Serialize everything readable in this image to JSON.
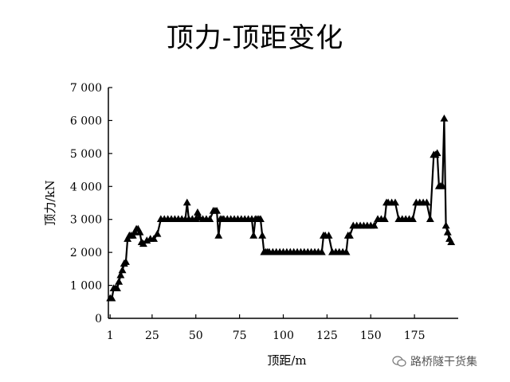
{
  "chart_data": {
    "type": "line",
    "title": "顶力-顶距变化",
    "xlabel": "顶距/m",
    "ylabel": "顶力/kN",
    "xlim": [
      0,
      200
    ],
    "ylim": [
      0,
      7000
    ],
    "x_ticks": [
      1,
      25,
      50,
      75,
      100,
      125,
      150,
      175
    ],
    "y_ticks": [
      0,
      1000,
      2000,
      3000,
      4000,
      5000,
      6000,
      7000
    ],
    "y_tick_labels": [
      "0",
      "1 000",
      "2 000",
      "3 000",
      "4 000",
      "5 000",
      "6 000",
      "7 000"
    ],
    "grid": false,
    "marker": "triangle",
    "series": [
      {
        "x": [
          1,
          2,
          3,
          4,
          5,
          6,
          7,
          8,
          9,
          10,
          11,
          12,
          13,
          14,
          15,
          16,
          17,
          18,
          19,
          20,
          22,
          24,
          26,
          28,
          30,
          32,
          34,
          36,
          38,
          40,
          42,
          44,
          45,
          46,
          48,
          50,
          51,
          52,
          54,
          56,
          58,
          60,
          61,
          62,
          63,
          64,
          65,
          66,
          68,
          70,
          72,
          74,
          76,
          78,
          80,
          82,
          83,
          84,
          85,
          86,
          87,
          88,
          89,
          90,
          91,
          92,
          94,
          96,
          98,
          100,
          102,
          104,
          106,
          108,
          110,
          112,
          114,
          116,
          118,
          120,
          122,
          123,
          124,
          126,
          128,
          130,
          132,
          134,
          136,
          137,
          138,
          140,
          142,
          144,
          146,
          148,
          150,
          152,
          154,
          156,
          158,
          159,
          160,
          162,
          164,
          166,
          168,
          170,
          172,
          174,
          176,
          178,
          180,
          182,
          184,
          186,
          187,
          188,
          189,
          190,
          191,
          192,
          193,
          194,
          195,
          196
        ],
        "y": [
          600,
          600,
          900,
          900,
          900,
          1100,
          1300,
          1450,
          1650,
          1700,
          2400,
          2500,
          2500,
          2500,
          2600,
          2700,
          2700,
          2600,
          2300,
          2250,
          2350,
          2400,
          2400,
          2550,
          3000,
          3000,
          3000,
          3000,
          3000,
          3000,
          3000,
          3000,
          3500,
          3000,
          3000,
          3000,
          3200,
          3050,
          3000,
          3000,
          3000,
          3250,
          3250,
          3250,
          2500,
          3000,
          3000,
          3000,
          3000,
          3000,
          3000,
          3000,
          3000,
          3000,
          3000,
          3000,
          2500,
          3000,
          3000,
          3000,
          3000,
          2500,
          2000,
          2000,
          2000,
          2000,
          2000,
          2000,
          2000,
          2000,
          2000,
          2000,
          2000,
          2000,
          2000,
          2000,
          2000,
          2000,
          2000,
          2000,
          2000,
          2500,
          2500,
          2500,
          2000,
          2000,
          2000,
          2000,
          2000,
          2500,
          2500,
          2800,
          2800,
          2800,
          2800,
          2800,
          2800,
          2800,
          3000,
          3000,
          3000,
          3500,
          3500,
          3500,
          3500,
          3000,
          3000,
          3000,
          3000,
          3000,
          3500,
          3500,
          3500,
          3500,
          3000,
          4950,
          4950,
          5000,
          4000,
          4000,
          4000,
          6050,
          2800,
          2600,
          2400,
          2300
        ]
      }
    ]
  },
  "watermark": {
    "text": "路桥隧干货集",
    "icon": "wechat-icon"
  }
}
